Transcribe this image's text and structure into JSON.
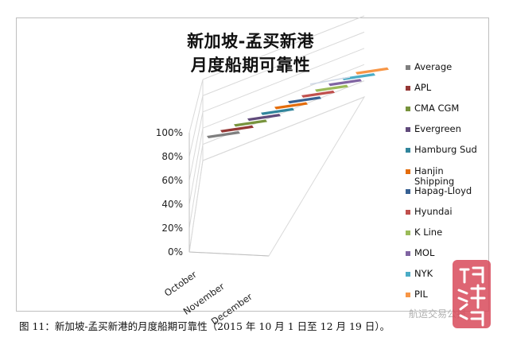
{
  "chart_data": {
    "type": "bar",
    "title": "新加坡-孟买新港",
    "subtitle": "月度船期可靠性",
    "categories": [
      "October",
      "November",
      "December"
    ],
    "yticks": [
      "100%",
      "80%",
      "60%",
      "40%",
      "20%",
      "0%"
    ],
    "ylim": [
      0,
      100
    ],
    "grid": true,
    "legend_position": "right",
    "series": [
      {
        "name": "Average",
        "color": "#7f7f7f"
      },
      {
        "name": "APL",
        "color": "#953735"
      },
      {
        "name": "CMA CGM",
        "color": "#77933c"
      },
      {
        "name": "Evergreen",
        "color": "#604a7b"
      },
      {
        "name": "Hamburg Sud",
        "color": "#31859c"
      },
      {
        "name": "Hanjin Shipping",
        "color": "#e46c0a"
      },
      {
        "name": "Hapag-Lloyd",
        "color": "#376092"
      },
      {
        "name": "Hyundai",
        "color": "#c0504d"
      },
      {
        "name": "K Line",
        "color": "#9bbb59"
      },
      {
        "name": "MOL",
        "color": "#8064a2"
      },
      {
        "name": "NYK",
        "color": "#4bacc6"
      },
      {
        "name": "PIL",
        "color": "#f79646"
      }
    ]
  },
  "caption": "图 11：新加坡-孟买新港的月度船期可靠性（2015 年 10 月 1 日至 12 月 19 日）。",
  "watermark": "航运交易公报",
  "seal_text": "订舱网海运"
}
